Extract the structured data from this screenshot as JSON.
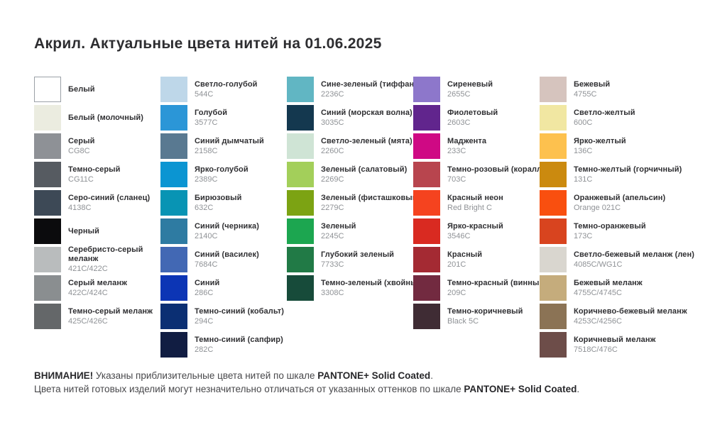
{
  "title": "Акрил. Актуальные цвета нитей на 01.06.2025",
  "columns": [
    {
      "items": [
        {
          "name": "Белый",
          "code": "",
          "color": "#ffffff"
        },
        {
          "name": "Белый (молочный)",
          "code": "",
          "color": "#ebece0"
        },
        {
          "name": "Серый",
          "code": "CG8C",
          "color": "#8e9196"
        },
        {
          "name": "Темно-серый",
          "code": "CG11C",
          "color": "#565b61"
        },
        {
          "name": "Серо-синий (сланец)",
          "code": "4138C",
          "color": "#3d4956"
        },
        {
          "name": "Черный",
          "code": "",
          "color": "#0b0b0d"
        },
        {
          "name": "Серебристо-серый\nмеланж",
          "code": "421C/422C",
          "color": "#b9bcbd"
        },
        {
          "name": "Серый меланж",
          "code": "422C/424C",
          "color": "#8a8e90"
        },
        {
          "name": "Темно-серый меланж",
          "code": "425C/426C",
          "color": "#646769"
        }
      ]
    },
    {
      "items": [
        {
          "name": "Светло-голубой",
          "code": "544C",
          "color": "#bed7e9"
        },
        {
          "name": "Голубой",
          "code": "3577C",
          "color": "#2b96d7"
        },
        {
          "name": "Синий дымчатый",
          "code": "2158C",
          "color": "#597991"
        },
        {
          "name": "Ярко-голубой",
          "code": "2389C",
          "color": "#0b95d2"
        },
        {
          "name": "Бирюзовый",
          "code": "632C",
          "color": "#0894b4"
        },
        {
          "name": "Синий (черника)",
          "code": "2140C",
          "color": "#2e7ba2"
        },
        {
          "name": "Синий (василек)",
          "code": "7684C",
          "color": "#4268b4"
        },
        {
          "name": "Синий",
          "code": "286C",
          "color": "#0c35b5"
        },
        {
          "name": "Темно-синий (кобальт)",
          "code": "294C",
          "color": "#0b2f73"
        },
        {
          "name": "Темно-синий (сапфир)",
          "code": "282C",
          "color": "#111d42"
        }
      ]
    },
    {
      "items": [
        {
          "name": "Сине-зеленый (тиффани)",
          "code": "2236C",
          "color": "#61b6c3"
        },
        {
          "name": "Синий (морская волна)",
          "code": "3035C",
          "color": "#14384f"
        },
        {
          "name": "Светло-зеленый (мята)",
          "code": "2260C",
          "color": "#cfe4d5"
        },
        {
          "name": "Зеленый (салатовый)",
          "code": "2269C",
          "color": "#a3cf5a"
        },
        {
          "name": "Зеленый (фисташковый)",
          "code": "2279C",
          "color": "#7ca313"
        },
        {
          "name": "Зеленый",
          "code": "2245C",
          "color": "#1ca650"
        },
        {
          "name": "Глубокий зеленый",
          "code": "7733C",
          "color": "#217a46"
        },
        {
          "name": "Темно-зеленый (хвойный)",
          "code": "3308C",
          "color": "#174b3a"
        }
      ]
    },
    {
      "items": [
        {
          "name": "Сиреневый",
          "code": "2655C",
          "color": "#8d77cb"
        },
        {
          "name": "Фиолетовый",
          "code": "2603C",
          "color": "#61258d"
        },
        {
          "name": "Маджента",
          "code": "233C",
          "color": "#cf0984"
        },
        {
          "name": "Темно-розовый (коралл)",
          "code": "703C",
          "color": "#b8454e"
        },
        {
          "name": "Красный неон",
          "code": "Red Bright C",
          "color": "#f5431f"
        },
        {
          "name": "Ярко-красный",
          "code": "3546C",
          "color": "#d92a21"
        },
        {
          "name": "Красный",
          "code": "201C",
          "color": "#a42a33"
        },
        {
          "name": "Темно-красный (винный)",
          "code": "209C",
          "color": "#722a40"
        },
        {
          "name": "Темно-коричневый",
          "code": "Black 5C",
          "color": "#3f2c34"
        }
      ]
    },
    {
      "items": [
        {
          "name": "Бежевый",
          "code": "4755C",
          "color": "#d6c4be"
        },
        {
          "name": "Светло-желтый",
          "code": "600C",
          "color": "#f1e7a2"
        },
        {
          "name": "Ярко-желтый",
          "code": "136C",
          "color": "#fdc14e"
        },
        {
          "name": "Темно-желтый (горчичный)",
          "code": "131C",
          "color": "#cb8a0f"
        },
        {
          "name": "Оранжевый (апельсин)",
          "code": "Orange 021C",
          "color": "#f94f0f"
        },
        {
          "name": "Темно-оранжевый",
          "code": "173C",
          "color": "#d8441f"
        },
        {
          "name": "Светло-бежевый меланж (лен)",
          "code": "4085C/WG1C",
          "color": "#d9d6cf"
        },
        {
          "name": "Бежевый меланж",
          "code": "4755C/4745C",
          "color": "#c5ac7c"
        },
        {
          "name": "Коричнево-бежевый меланж",
          "code": "4253C/4256C",
          "color": "#8b7355"
        },
        {
          "name": "Коричневый меланж",
          "code": "7518C/476C",
          "color": "#6d4d49"
        }
      ]
    }
  ],
  "footer": {
    "warning": "ВНИМАНИЕ!",
    "line1_rest": " Указаны приблизительные цвета нитей по шкале ",
    "scale1": "PANTONE+ Solid Coated",
    "dot1": ".",
    "line2": "Цвета нитей готовых изделий могут незначительно отличаться от указанных оттенков по шкале ",
    "scale2": "PANTONE+ Solid Coated",
    "dot2": "."
  }
}
